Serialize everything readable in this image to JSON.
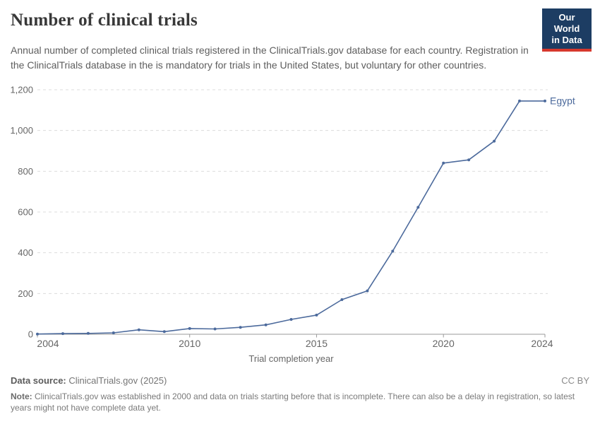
{
  "header": {
    "title": "Number of clinical trials",
    "subtitle": "Annual number of completed clinical trials registered in the ClinicalTrials.gov database for each country. Registration in the ClinicalTrials database in the is mandatory for trials in the United States, but voluntary for other countries."
  },
  "logo": {
    "line1": "Our World",
    "line2": "in Data",
    "bg_color": "#1d3d63",
    "stripe_color": "#d7382d"
  },
  "chart_data": {
    "type": "line",
    "title": "Number of clinical trials",
    "xlabel": "Trial completion year",
    "ylabel": "",
    "x": [
      2004,
      2005,
      2006,
      2007,
      2008,
      2009,
      2010,
      2011,
      2012,
      2013,
      2014,
      2015,
      2016,
      2017,
      2018,
      2019,
      2020,
      2021,
      2022,
      2023,
      2024
    ],
    "series": [
      {
        "name": "Egypt",
        "color": "#4C6A9C",
        "values": [
          1,
          3,
          4,
          7,
          22,
          13,
          28,
          26,
          34,
          46,
          73,
          94,
          170,
          213,
          408,
          623,
          840,
          856,
          948,
          1145,
          1145
        ]
      }
    ],
    "ylim": [
      0,
      1200
    ],
    "yticks": [
      0,
      200,
      400,
      600,
      800,
      1000,
      1200
    ],
    "ytick_labels": [
      "0",
      "200",
      "400",
      "600",
      "800",
      "1,000",
      "1,200"
    ],
    "xticks": [
      2004,
      2010,
      2015,
      2020,
      2024
    ],
    "grid": "horizontal-dashed",
    "legend_position": "end-of-line",
    "colors": {
      "grid": "#dcdcdc",
      "axis": "#9a9a9a",
      "tick_text": "#666666"
    }
  },
  "footer": {
    "source_label": "Data source:",
    "source_value": "ClinicalTrials.gov (2025)",
    "license": "CC BY",
    "note_label": "Note:",
    "note_value": "ClinicalTrials.gov was established in 2000 and data on trials starting before that is incomplete. There can also be a delay in registration, so latest years might not have complete data yet."
  }
}
